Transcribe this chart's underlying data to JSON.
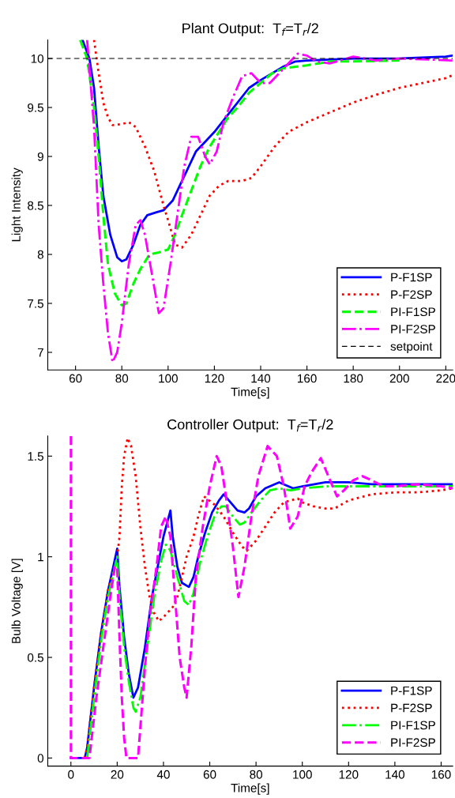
{
  "chart_data": [
    {
      "type": "line",
      "title": "Plant Output:  T$_{f}$=T$_{r}$/2",
      "xlabel": "Time[s]",
      "ylabel": "Light Intensity",
      "xlim": [
        48,
        223
      ],
      "xticks": [
        60,
        80,
        100,
        120,
        140,
        160,
        180,
        200,
        220
      ],
      "ylim": [
        6.82,
        10.19
      ],
      "yticks": [
        7,
        7.5,
        8,
        8.5,
        9,
        9.5,
        10
      ],
      "grid": false,
      "legend": "bottom right",
      "series": [
        {
          "name": "P-F1SP",
          "color": "#0000ff",
          "line_style": "solid",
          "x": [
            63,
            66,
            68,
            70,
            72,
            75,
            78,
            80,
            82,
            85,
            88,
            91,
            95,
            98,
            102,
            105,
            108,
            112,
            116,
            120,
            125,
            130,
            135,
            140,
            145,
            150,
            155,
            160,
            170,
            180,
            200,
            220,
            223
          ],
          "values": [
            10.19,
            10.0,
            9.7,
            9.1,
            8.6,
            8.2,
            7.97,
            7.93,
            7.95,
            8.1,
            8.3,
            8.4,
            8.43,
            8.45,
            8.55,
            8.7,
            8.85,
            9.05,
            9.15,
            9.25,
            9.4,
            9.55,
            9.7,
            9.78,
            9.85,
            9.92,
            9.97,
            9.98,
            9.99,
            10.0,
            10.0,
            10.02,
            10.03
          ]
        },
        {
          "name": "P-F2SP",
          "color": "#ff0000",
          "line_style": "dotted",
          "x": [
            68,
            70,
            72,
            74,
            76,
            80,
            83,
            86,
            90,
            94,
            98,
            100,
            103,
            106,
            110,
            114,
            118,
            122,
            126,
            132,
            136,
            140,
            146,
            152,
            160,
            170,
            180,
            190,
            200,
            210,
            220,
            223
          ],
          "values": [
            10.19,
            9.85,
            9.55,
            9.4,
            9.32,
            9.33,
            9.35,
            9.3,
            9.1,
            8.85,
            8.5,
            8.35,
            8.1,
            8.07,
            8.2,
            8.4,
            8.6,
            8.7,
            8.75,
            8.75,
            8.78,
            8.9,
            9.1,
            9.25,
            9.35,
            9.45,
            9.55,
            9.63,
            9.7,
            9.75,
            9.8,
            9.83
          ]
        },
        {
          "name": "PI-F1SP",
          "color": "#00ff00",
          "line_style": "dashed",
          "x": [
            62,
            65,
            68,
            70,
            72,
            74,
            77,
            80,
            82,
            85,
            88,
            92,
            96,
            100,
            103,
            106,
            110,
            114,
            118,
            122,
            126,
            130,
            135,
            140,
            145,
            150,
            160,
            170,
            180,
            200
          ],
          "values": [
            10.19,
            10.0,
            9.5,
            9.0,
            8.4,
            7.9,
            7.6,
            7.48,
            7.5,
            7.7,
            7.85,
            8.0,
            8.02,
            8.05,
            8.2,
            8.4,
            8.65,
            8.9,
            9.1,
            9.25,
            9.4,
            9.5,
            9.65,
            9.75,
            9.85,
            9.9,
            9.93,
            9.97,
            9.97,
            9.98
          ]
        },
        {
          "name": "PI-F2SP",
          "color": "#ff00ff",
          "line_style": "dashdot",
          "x": [
            65,
            68,
            70,
            72,
            74,
            76,
            78,
            80,
            83,
            86,
            88,
            90,
            93,
            96,
            98,
            101,
            104,
            107,
            110,
            113,
            116,
            118,
            121,
            124,
            128,
            132,
            136,
            140,
            144,
            148,
            152,
            156,
            160,
            164,
            170,
            180,
            190,
            200,
            223
          ],
          "values": [
            10.19,
            9.3,
            8.3,
            7.7,
            7.2,
            6.9,
            7.0,
            7.3,
            7.9,
            8.3,
            8.35,
            8.2,
            7.8,
            7.4,
            7.45,
            7.9,
            8.4,
            8.9,
            9.2,
            9.2,
            9.0,
            8.92,
            9.05,
            9.35,
            9.6,
            9.82,
            9.85,
            9.75,
            9.75,
            9.85,
            9.95,
            10.05,
            10.03,
            9.97,
            9.95,
            10.02,
            9.98,
            10.0,
            9.98
          ]
        }
      ],
      "ref_lines": [
        {
          "axis": "y",
          "value": 10,
          "label": "setpoint",
          "color": "#000000",
          "line_style": "dashed"
        }
      ]
    },
    {
      "type": "line",
      "title": "Controller Output:  T$_{f}$=T$_{r}$/2",
      "xlabel": "Time[s]",
      "ylabel": "Bulb Voltage [V]",
      "xlim": [
        -10,
        165
      ],
      "xticks": [
        0,
        20,
        40,
        60,
        80,
        100,
        120,
        140,
        160
      ],
      "ylim": [
        -0.04,
        1.6
      ],
      "yticks": [
        0,
        0.5,
        1,
        1.5
      ],
      "grid": false,
      "legend": "bottom right",
      "series": [
        {
          "name": "P-F1SP",
          "color": "#0000ff",
          "line_style": "solid",
          "x": [
            0,
            6,
            7,
            10,
            13,
            16,
            20,
            21,
            23,
            25,
            27,
            29,
            32,
            35,
            38,
            40,
            43,
            44,
            46,
            48,
            51,
            53,
            55,
            58,
            61,
            64,
            66,
            69,
            72,
            75,
            77,
            80,
            84,
            88,
            90,
            92,
            96,
            100,
            110,
            120,
            130,
            140,
            150,
            160,
            165
          ],
          "values": [
            0,
            0,
            0.05,
            0.35,
            0.62,
            0.83,
            1.04,
            0.85,
            0.6,
            0.42,
            0.3,
            0.35,
            0.55,
            0.8,
            0.98,
            1.1,
            1.23,
            1.1,
            0.95,
            0.87,
            0.85,
            0.9,
            1.0,
            1.12,
            1.22,
            1.28,
            1.31,
            1.27,
            1.23,
            1.22,
            1.24,
            1.3,
            1.34,
            1.36,
            1.37,
            1.36,
            1.34,
            1.35,
            1.37,
            1.37,
            1.36,
            1.36,
            1.36,
            1.36,
            1.36
          ]
        },
        {
          "name": "P-F2SP",
          "color": "#ff0000",
          "line_style": "dotted",
          "x": [
            6,
            7,
            10,
            13,
            16,
            20,
            21,
            22,
            23,
            24.5,
            26,
            28,
            30,
            32,
            34,
            36,
            38,
            40,
            44,
            46,
            48,
            50,
            53,
            55,
            57.5,
            62,
            66,
            70,
            74,
            76,
            80,
            84,
            88,
            92,
            98,
            100,
            105,
            110,
            114,
            120,
            130,
            140,
            150,
            160,
            165
          ],
          "values": [
            0,
            0.05,
            0.35,
            0.62,
            0.83,
            1.0,
            1.1,
            1.35,
            1.5,
            1.59,
            1.55,
            1.4,
            1.15,
            0.95,
            0.8,
            0.72,
            0.68,
            0.7,
            0.75,
            0.8,
            0.9,
            1.0,
            1.1,
            1.2,
            1.3,
            1.26,
            1.2,
            1.12,
            1.05,
            1.03,
            1.08,
            1.15,
            1.22,
            1.27,
            1.29,
            1.27,
            1.25,
            1.24,
            1.24,
            1.28,
            1.31,
            1.32,
            1.32,
            1.33,
            1.34
          ]
        },
        {
          "name": "PI-F1SP",
          "color": "#00ff00",
          "line_style": "dashdot",
          "x": [
            7,
            10,
            13,
            16,
            20,
            21,
            23,
            25,
            27,
            28,
            30,
            33,
            36,
            39,
            41,
            43,
            46,
            49,
            51,
            53,
            56,
            59,
            62,
            65,
            67,
            70,
            73,
            75,
            78,
            82,
            86,
            90,
            95,
            100,
            110,
            120,
            130,
            140,
            150,
            160,
            165
          ],
          "values": [
            0,
            0.3,
            0.58,
            0.8,
            1.0,
            0.8,
            0.55,
            0.38,
            0.25,
            0.23,
            0.3,
            0.55,
            0.8,
            0.98,
            1.06,
            1.03,
            0.9,
            0.78,
            0.76,
            0.82,
            0.98,
            1.1,
            1.2,
            1.25,
            1.25,
            1.2,
            1.16,
            1.17,
            1.22,
            1.28,
            1.33,
            1.34,
            1.33,
            1.34,
            1.35,
            1.35,
            1.35,
            1.35,
            1.35,
            1.35,
            1.35
          ]
        },
        {
          "name": "PI-F2SP",
          "color": "#ff00ff",
          "line_style": "dashed",
          "x": [
            0,
            0,
            8,
            11,
            14,
            17,
            19,
            20,
            21,
            22,
            23,
            24,
            29,
            30,
            32,
            34,
            37,
            39,
            41,
            43,
            45,
            47,
            49,
            50,
            52,
            54,
            57,
            60,
            63,
            65,
            67,
            70,
            72.4,
            75,
            78,
            81,
            85,
            89,
            92,
            94.8,
            98,
            101,
            104,
            108,
            112,
            115,
            118,
            122,
            126,
            130,
            135,
            140,
            150,
            160,
            165
          ],
          "values": [
            1.6,
            0,
            0,
            0.3,
            0.55,
            0.8,
            0.95,
            0.95,
            0.6,
            0.3,
            0.1,
            0,
            0,
            0.15,
            0.45,
            0.7,
            0.95,
            1.15,
            1.2,
            1.1,
            0.8,
            0.5,
            0.35,
            0.3,
            0.55,
            0.9,
            1.15,
            1.35,
            1.5,
            1.45,
            1.3,
            1.05,
            0.8,
            0.95,
            1.2,
            1.4,
            1.55,
            1.5,
            1.35,
            1.14,
            1.2,
            1.35,
            1.42,
            1.49,
            1.38,
            1.3,
            1.33,
            1.38,
            1.4,
            1.38,
            1.35,
            1.35,
            1.36,
            1.35,
            1.34
          ]
        }
      ]
    }
  ]
}
